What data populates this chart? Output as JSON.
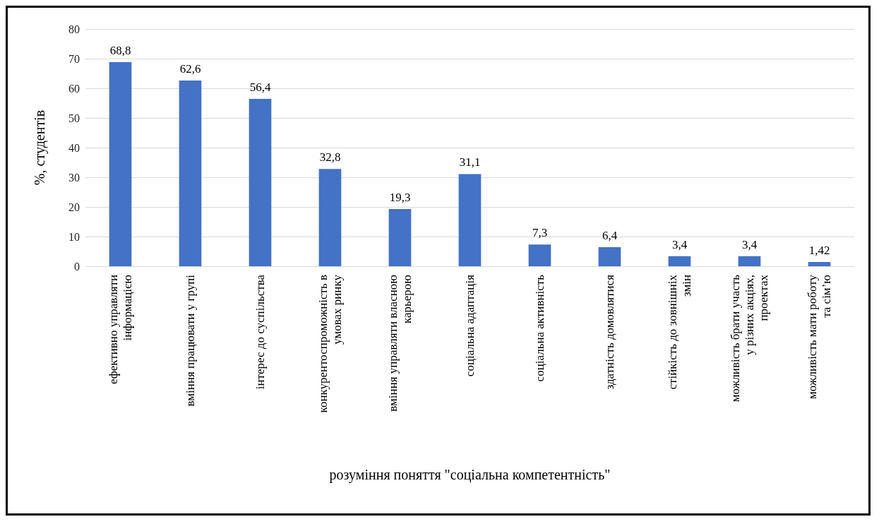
{
  "chart_data": {
    "type": "bar",
    "xlabel": "розуміння поняття \"соціальна компетентність\"",
    "ylabel": "%, студентів",
    "categories": [
      "ефективно управляти інформацією",
      "вміння працювати у групі",
      "інтерес до суспільства",
      "конкурентоспроможність в умовах ринку",
      "вміння управляти власною карьерою",
      "соціальна адаптація",
      "соціальна активність",
      "здатність домовлятися",
      "стійкість до зовнішніх змін",
      "можливість брати участь у різних акціях, проектах",
      "можливість мати роботу та сім’ю"
    ],
    "values": [
      68.8,
      62.6,
      56.4,
      32.8,
      19.3,
      31.1,
      7.3,
      6.4,
      3.4,
      3.4,
      1.42
    ],
    "value_labels": [
      "68,8",
      "62,6",
      "56,4",
      "32,8",
      "19,3",
      "31,1",
      "7,3",
      "6,4",
      "3,4",
      "3,4",
      "1,42"
    ],
    "color": "#4472c4",
    "ylim": [
      0,
      80
    ],
    "yticks": [
      0,
      10,
      20,
      30,
      40,
      50,
      60,
      70,
      80
    ],
    "grid": "y"
  }
}
